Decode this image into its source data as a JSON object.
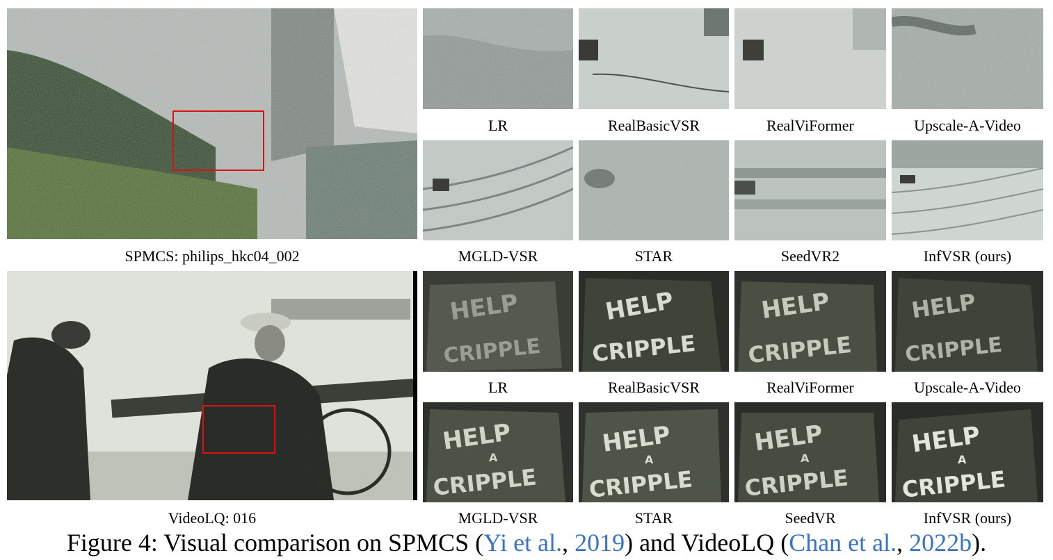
{
  "figure": {
    "caption_prefix": "Figure 4:",
    "caption_text_1": "Visual comparison on SPMCS (",
    "cite1_author": "Yi et al.",
    "cite_sep1": ", ",
    "cite1_year": "2019",
    "caption_text_2": ") and VideoLQ (",
    "cite2_author": "Chan et al.",
    "cite_sep2": ", ",
    "cite2_year": "2022b",
    "caption_text_3": ")."
  },
  "row1": {
    "source_label": "SPMCS: philips_hkc04_002",
    "top_labels": [
      "LR",
      "RealBasicVSR",
      "RealViFormer",
      "Upscale-A-Video"
    ],
    "bottom_labels": [
      "MGLD-VSR",
      "STAR",
      "SeedVR2",
      "InfVSR (ours)"
    ]
  },
  "row2": {
    "source_label": "VideoLQ: 016",
    "top_labels": [
      "LR",
      "RealBasicVSR",
      "RealViFormer",
      "Upscale-A-Video"
    ],
    "bottom_labels": [
      "MGLD-VSR",
      "STAR",
      "SeedVR",
      "InfVSR (ours)"
    ],
    "sign_line1": "HELP",
    "sign_line2": "A",
    "sign_line3": "CRIPPLE"
  },
  "colors": {
    "highlight_box": "#e01010",
    "citation": "#3a72c4"
  }
}
